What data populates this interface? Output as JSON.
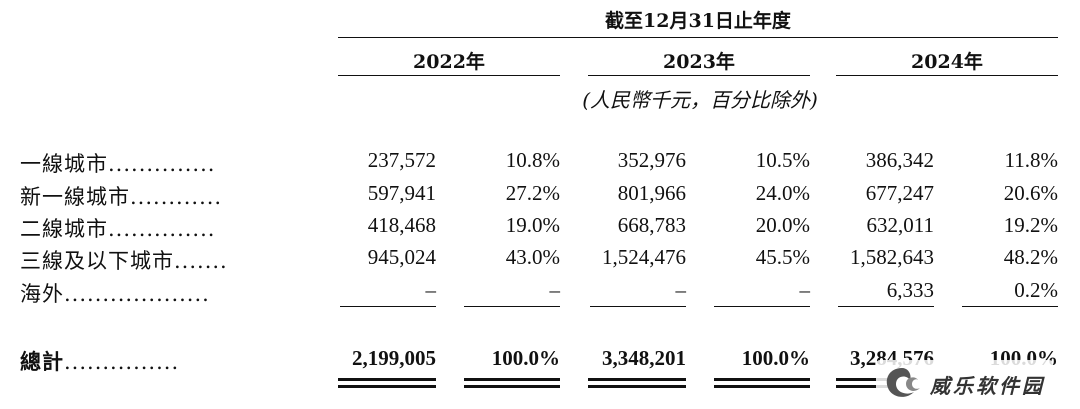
{
  "header": {
    "period": "截至12月31日止年度",
    "unit": "(人民幣千元，百分比除外)"
  },
  "years": [
    "2022年",
    "2023年",
    "2024年"
  ],
  "rows": [
    {
      "label": "一線城市",
      "leader": "..............",
      "values": [
        "237,572",
        "10.8%",
        "352,976",
        "10.5%",
        "386,342",
        "11.8%"
      ]
    },
    {
      "label": "新一線城市",
      "leader": "............",
      "values": [
        "597,941",
        "27.2%",
        "801,966",
        "24.0%",
        "677,247",
        "20.6%"
      ]
    },
    {
      "label": "二線城市",
      "leader": "..............",
      "values": [
        "418,468",
        "19.0%",
        "668,783",
        "20.0%",
        "632,011",
        "19.2%"
      ]
    },
    {
      "label": "三線及以下城市",
      "leader": ".......",
      "values": [
        "945,024",
        "43.0%",
        "1,524,476",
        "45.5%",
        "1,582,643",
        "48.2%"
      ]
    },
    {
      "label": "海外",
      "leader": "...................",
      "values": [
        "–",
        "–",
        "–",
        "–",
        "6,333",
        "0.2%"
      ]
    }
  ],
  "total": {
    "label": "總計",
    "leader": "...............",
    "values": [
      "2,199,005",
      "100.0%",
      "3,348,201",
      "100.0%",
      "3,284,576",
      "100.0%"
    ]
  },
  "watermark": {
    "text": "威乐软件园",
    "icon": "swirl-logo-icon",
    "color": "#555555"
  }
}
